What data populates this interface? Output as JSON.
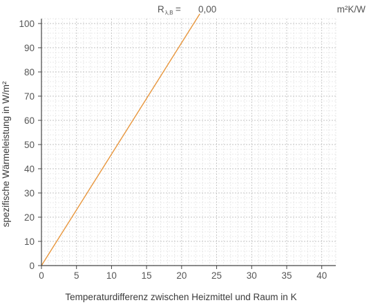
{
  "chart_data": {
    "type": "line",
    "xlabel": "Temperaturdifferenz zwischen Heizmittel und Raum in K",
    "ylabel": "spezifische Wärmeleistung in W/m²",
    "xlim": [
      0,
      42
    ],
    "ylim": [
      0,
      102
    ],
    "x_ticks": [
      0,
      5,
      10,
      15,
      20,
      25,
      30,
      35,
      40
    ],
    "y_ticks": [
      0,
      10,
      20,
      30,
      40,
      50,
      60,
      70,
      80,
      90,
      100
    ],
    "grid": true,
    "minor_grid_step_x": 1,
    "minor_grid_step_y": 2,
    "series": [
      {
        "color": "#e8963c",
        "x": [
          0,
          22.6
        ],
        "y": [
          0,
          104
        ]
      }
    ],
    "annotation": {
      "symbol": "R",
      "subscript": "λ,B",
      "equals": " =",
      "value": "0,00",
      "unit": "m²K/W"
    }
  },
  "colors": {
    "line": "#e8963c",
    "axis": "#444444",
    "major_grid": "#c2c2c2",
    "minor_grid": "#e2e2e2"
  }
}
